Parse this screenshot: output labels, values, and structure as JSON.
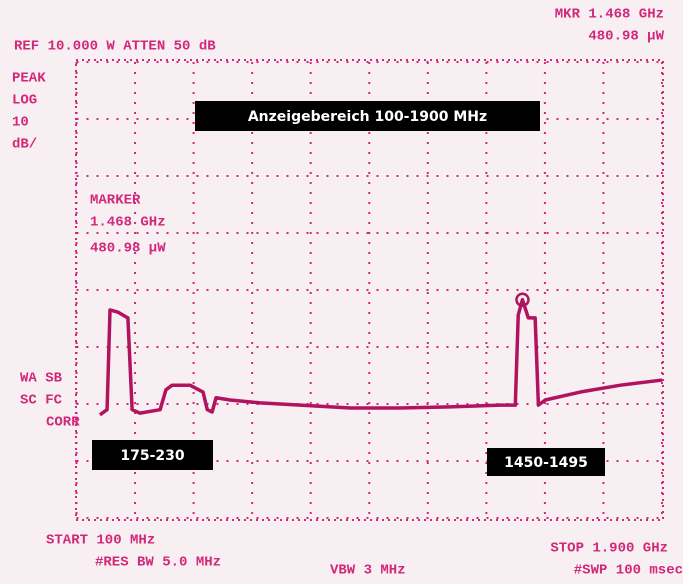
{
  "chart_data": {
    "type": "line",
    "header": {
      "ref": "REF 10.000  W  ATTEN 50 dB",
      "marker_freq": "MKR 1.468 GHz",
      "marker_power": "480.98 µW"
    },
    "left_labels": [
      "PEAK",
      "LOG",
      "10",
      "dB/"
    ],
    "marker_block": [
      "MARKER",
      "1.468 GHz",
      "480.98 µW"
    ],
    "correction_labels": [
      "WA SB",
      "SC FC",
      "CORR"
    ],
    "footer": {
      "start": "START 100 MHz",
      "res_bw": "#RES BW 5.0 MHz",
      "vbw": "VBW 3 MHz",
      "stop": "STOP 1.900 GHz",
      "sweep": "#SWP 100 msec"
    },
    "title": "Anzeigebereich 100-1900 MHz",
    "annotations": [
      "175-230",
      "1450-1495"
    ],
    "x": [
      172,
      194,
      203,
      228,
      258,
      271,
      295,
      357,
      375,
      394,
      449,
      489,
      502,
      517,
      529,
      572,
      665,
      788,
      942,
      1095,
      1249,
      1403,
      1449,
      1458,
      1471,
      1489,
      1510,
      1520,
      1541,
      1649,
      1772,
      1900
    ],
    "series": [
      {
        "color": "#b0145e",
        "values": [
          -61.9,
          -61.0,
          -43.5,
          -43.9,
          -44.9,
          -61.0,
          -61.6,
          -61.0,
          -57.5,
          -56.7,
          -56.7,
          -57.9,
          -61.0,
          -61.4,
          -58.9,
          -59.3,
          -59.8,
          -60.2,
          -60.7,
          -60.7,
          -60.5,
          -60.2,
          -60.2,
          -44.4,
          -41.7,
          -44.9,
          -44.9,
          -60.2,
          -59.3,
          -57.9,
          -56.7,
          -55.8
        ]
      }
    ],
    "xlim": [
      100,
      1900
    ],
    "ylim": [
      -80,
      0
    ],
    "xticks": [
      100,
      280,
      460,
      640,
      820,
      1000,
      1180,
      1360,
      1540,
      1720,
      1900
    ],
    "yticks": [
      -80,
      -70,
      -60,
      -50,
      -40,
      -30,
      -20,
      -10,
      0
    ],
    "grid": true
  }
}
